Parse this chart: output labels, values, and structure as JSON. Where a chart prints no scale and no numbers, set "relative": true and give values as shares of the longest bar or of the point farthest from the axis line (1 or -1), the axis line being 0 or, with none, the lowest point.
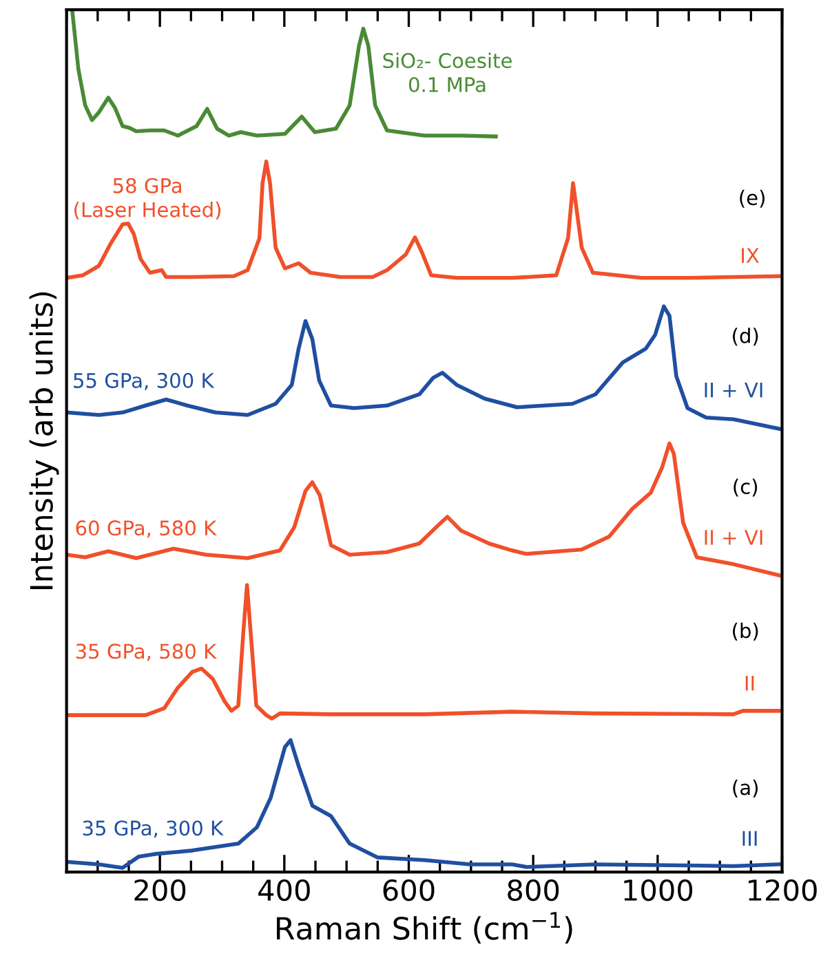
{
  "chart_data": {
    "type": "line",
    "relative": true,
    "xlabel": "Raman Shift (cm$^{−1}$)",
    "ylabel": "Intensity (arb units)",
    "xlim": [
      50,
      1200
    ],
    "xticks": [
      {
        "value": 50,
        "label": null
      },
      {
        "value": 100,
        "label": null
      },
      {
        "value": 150,
        "label": null
      },
      200,
      {
        "value": 250,
        "label": null
      },
      {
        "value": 300,
        "label": null
      },
      {
        "value": 350,
        "label": null
      },
      400,
      {
        "value": 450,
        "label": null
      },
      {
        "value": 500,
        "label": null
      },
      {
        "value": 550,
        "label": null
      },
      600,
      {
        "value": 650,
        "label": null
      },
      {
        "value": 700,
        "label": null
      },
      {
        "value": 750,
        "label": null
      },
      800,
      {
        "value": 850,
        "label": null
      },
      {
        "value": 900,
        "label": null
      },
      {
        "value": 950,
        "label": null
      },
      1000,
      {
        "value": 1050,
        "label": null
      },
      {
        "value": 1100,
        "label": null
      },
      {
        "value": 1150,
        "label": null
      },
      1200
    ],
    "tick_labels": "x",
    "grid": false,
    "legend": false,
    "marker": "none",
    "line_style": "solid",
    "series": [
      {
        "name": "SiO₂- Coesite\n0.1 MPa",
        "color": "#4a8a35",
        "x": [
          59,
          69,
          80,
          91,
          102,
          117,
          128,
          140,
          151,
          162,
          184,
          207,
          229,
          259,
          276,
          292,
          311,
          330,
          356,
          401,
          428,
          449,
          483,
          505,
          520,
          527,
          535,
          546,
          565,
          625,
          684,
          740
        ],
        "values": [
          1.0,
          0.931,
          0.889,
          0.872,
          0.881,
          0.898,
          0.886,
          0.865,
          0.863,
          0.859,
          0.86,
          0.86,
          0.854,
          0.865,
          0.885,
          0.862,
          0.854,
          0.858,
          0.854,
          0.856,
          0.876,
          0.858,
          0.862,
          0.889,
          0.958,
          0.978,
          0.958,
          0.889,
          0.86,
          0.854,
          0.854,
          0.853
        ]
      },
      {
        "name": "58 GPa\n(Laser Heated)",
        "color": "#f0502a",
        "x": [
          50,
          76,
          102,
          121,
          140,
          149,
          158,
          169,
          184,
          203,
          210,
          251,
          319,
          341,
          360,
          365,
          371,
          377,
          386,
          401,
          423,
          442,
          490,
          542,
          565,
          595,
          610,
          621,
          636,
          677,
          766,
          837,
          856,
          864,
          878,
          896,
          922,
          974,
          1048,
          1122,
          1196
        ],
        "values": [
          0.689,
          0.692,
          0.703,
          0.729,
          0.751,
          0.752,
          0.74,
          0.711,
          0.695,
          0.698,
          0.69,
          0.69,
          0.691,
          0.698,
          0.735,
          0.799,
          0.824,
          0.799,
          0.724,
          0.7,
          0.706,
          0.695,
          0.69,
          0.69,
          0.698,
          0.716,
          0.736,
          0.719,
          0.692,
          0.689,
          0.689,
          0.692,
          0.735,
          0.799,
          0.724,
          0.695,
          0.693,
          0.689,
          0.689,
          0.69,
          0.691
        ]
      },
      {
        "name": "55 GPa, 300 K",
        "color": "#1f4fa0",
        "x": [
          50,
          102,
          140,
          177,
          210,
          244,
          289,
          341,
          386,
          412,
          423,
          434,
          445,
          456,
          475,
          512,
          565,
          617,
          639,
          654,
          677,
          722,
          774,
          863,
          900,
          944,
          981,
          996,
          1010,
          1019,
          1030,
          1048,
          1078,
          1122,
          1196
        ],
        "values": [
          0.533,
          0.53,
          0.533,
          0.541,
          0.548,
          0.541,
          0.533,
          0.53,
          0.543,
          0.565,
          0.607,
          0.639,
          0.618,
          0.57,
          0.541,
          0.538,
          0.541,
          0.554,
          0.573,
          0.579,
          0.565,
          0.549,
          0.539,
          0.543,
          0.554,
          0.591,
          0.607,
          0.623,
          0.656,
          0.645,
          0.575,
          0.538,
          0.527,
          0.525,
          0.514
        ]
      },
      {
        "name": "60 GPa, 580 K",
        "color": "#f0502a",
        "x": [
          50,
          80,
          117,
          162,
          222,
          274,
          341,
          393,
          416,
          434,
          445,
          457,
          475,
          505,
          565,
          617,
          647,
          662,
          684,
          729,
          766,
          789,
          878,
          922,
          959,
          989,
          1007,
          1019,
          1026,
          1041,
          1063,
          1122,
          1196
        ],
        "values": [
          0.368,
          0.365,
          0.372,
          0.364,
          0.375,
          0.368,
          0.364,
          0.373,
          0.4,
          0.442,
          0.452,
          0.437,
          0.379,
          0.368,
          0.371,
          0.381,
          0.402,
          0.412,
          0.396,
          0.381,
          0.373,
          0.369,
          0.374,
          0.389,
          0.421,
          0.44,
          0.469,
          0.497,
          0.485,
          0.405,
          0.365,
          0.357,
          0.344
        ]
      },
      {
        "name": "35 GPa, 580 K",
        "color": "#f0502a",
        "x": [
          50,
          102,
          177,
          207,
          229,
          252,
          267,
          285,
          304,
          315,
          326,
          334,
          340,
          346,
          355,
          371,
          380,
          393,
          475,
          625,
          766,
          900,
          1122,
          1137,
          1196
        ],
        "values": [
          0.182,
          0.182,
          0.182,
          0.19,
          0.214,
          0.232,
          0.236,
          0.224,
          0.198,
          0.187,
          0.193,
          0.277,
          0.333,
          0.277,
          0.193,
          0.182,
          0.178,
          0.184,
          0.183,
          0.183,
          0.186,
          0.184,
          0.183,
          0.187,
          0.187
        ]
      },
      {
        "name": "35 GPa, 300 K",
        "color": "#1f4fa0",
        "x": [
          50,
          102,
          140,
          166,
          192,
          252,
          326,
          356,
          378,
          401,
          410,
          423,
          445,
          475,
          505,
          550,
          625,
          699,
          766,
          789,
          900,
          1122,
          1196
        ],
        "values": [
          0.012,
          0.009,
          0.005,
          0.018,
          0.021,
          0.025,
          0.033,
          0.052,
          0.086,
          0.145,
          0.153,
          0.123,
          0.077,
          0.065,
          0.033,
          0.017,
          0.014,
          0.009,
          0.009,
          0.006,
          0.009,
          0.007,
          0.009
        ]
      }
    ],
    "annotations": [
      "(e)",
      "IX",
      "(d)",
      "II + VI",
      "(c)",
      "II + VI",
      "(b)",
      "II",
      "(a)",
      "III"
    ]
  }
}
